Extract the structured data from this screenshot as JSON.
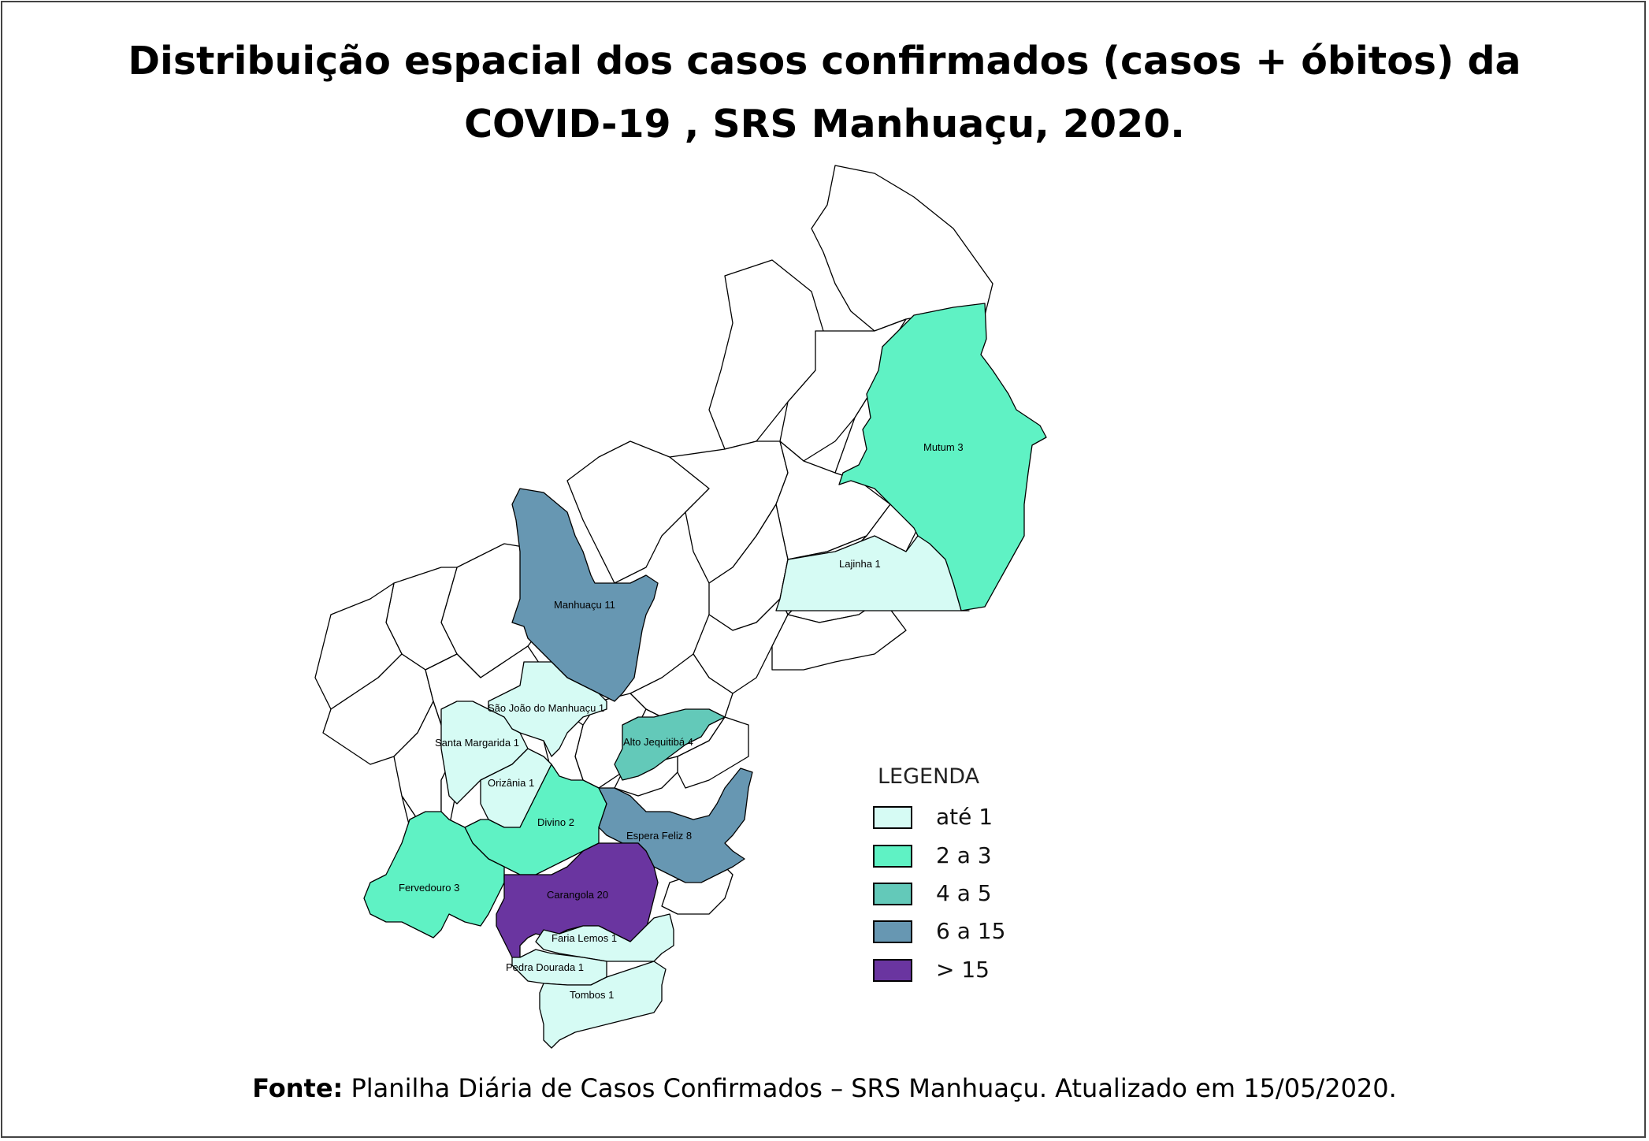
{
  "title": {
    "line1": "Distribuição espacial dos casos confirmados (casos + óbitos) da",
    "line2": "COVID-19 , SRS Manhuaçu, 2020."
  },
  "colors": {
    "ate1": "#d6fbf4",
    "c2a3": "#5ff2c4",
    "c4a5": "#63c9b9",
    "c6a15": "#6797b2",
    "c15plus": "#6a35a0",
    "none": "#ffffff"
  },
  "legend": {
    "title": "LEGENDA",
    "items": [
      {
        "label": "até 1",
        "color": "#d6fbf4"
      },
      {
        "label": "2 a 3",
        "color": "#5ff2c4"
      },
      {
        "label": "4 a 5",
        "color": "#63c9b9"
      },
      {
        "label": "6 a 15",
        "color": "#6797b2"
      },
      {
        "label": "> 15",
        "color": "#6a35a0"
      }
    ]
  },
  "map_labels": {
    "mutum": "Mutum   3",
    "lajinha": "Lajinha   1",
    "manhuacu": "Manhuaçu  11",
    "sao_joao": "São João do Manhuaçu   1",
    "santa_margarida": "Santa Margarida   1",
    "alto_jequitiba": "Alto Jequitibá   4",
    "orizania": "Orizânia   1",
    "divino": "Divino   2",
    "espera_feliz": "Espera Feliz   8",
    "fervedouro": "Fervedouro   3",
    "carangola": "Carangola 20",
    "faria_lemos": "Faria Lemos   1",
    "pedra_dourada": "Pedra Dourada   1",
    "tombos": "Tombos   1"
  },
  "source": {
    "bold": "Fonte:",
    "text": " Planilha Diária de Casos Confirmados – SRS Manhuaçu. Atualizado em 15/05/2020."
  }
}
